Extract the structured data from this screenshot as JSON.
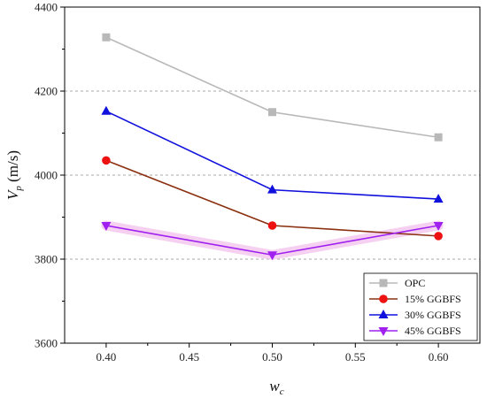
{
  "chart_data": {
    "type": "line",
    "title": "",
    "xlabel": {
      "main": "w",
      "sub": "c"
    },
    "ylabel": {
      "main": "V",
      "sub": "p",
      "unit": " (m/s)"
    },
    "x": [
      0.4,
      0.5,
      0.6
    ],
    "xlim": [
      0.375,
      0.625
    ],
    "ylim": [
      3600,
      4400
    ],
    "xticks": [
      0.4,
      0.45,
      0.5,
      0.55,
      0.6
    ],
    "xtick_labels": [
      "0.40",
      "0.45",
      "0.50",
      "0.55",
      "0.60"
    ],
    "yticks": [
      3600,
      3800,
      4000,
      4200,
      4400
    ],
    "ytick_labels": [
      "3600",
      "3800",
      "4000",
      "4200",
      "4400"
    ],
    "grid": "horizontal-dashed",
    "legend_position": "bottom-right",
    "series": [
      {
        "name": "OPC",
        "values": [
          4328,
          4150,
          4090
        ],
        "color": "#b8b8b8",
        "marker": "square"
      },
      {
        "name": "15% GGBFS",
        "values": [
          4035,
          3880,
          3855
        ],
        "color": "#ee1111",
        "line_color": "#8b3010",
        "marker": "circle"
      },
      {
        "name": "30% GGBFS",
        "values": [
          4152,
          3965,
          3943
        ],
        "color": "#1111dd",
        "marker": "triangle-up"
      },
      {
        "name": "45% GGBFS",
        "values": [
          3880,
          3810,
          3880
        ],
        "color": "#a020f0",
        "marker": "triangle-down"
      }
    ]
  }
}
